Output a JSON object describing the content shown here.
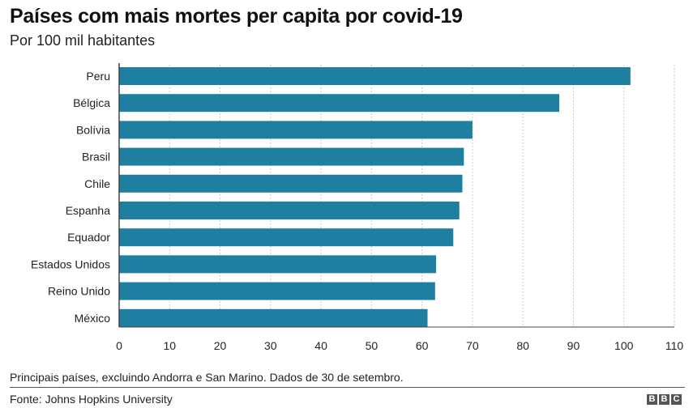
{
  "header": {
    "title": "Países com mais mortes per capita por covid-19",
    "subtitle": "Por 100 mil habitantes"
  },
  "footer": {
    "note": "Principais países, excluindo Andorra e San Marino. Dados de 30 de setembro.",
    "source": "Fonte: Johns Hopkins University",
    "logo_letters": [
      "B",
      "B",
      "C"
    ]
  },
  "colors": {
    "bar": "#1e7fa0",
    "grid": "#cccccc",
    "axis": "#444444"
  },
  "chart_data": {
    "type": "bar",
    "orientation": "horizontal",
    "title": "Países com mais mortes per capita por covid-19",
    "subtitle": "Por 100 mil habitantes",
    "categories": [
      "Peru",
      "Bélgica",
      "Bolívia",
      "Brasil",
      "Chile",
      "Espanha",
      "Equador",
      "Estados Unidos",
      "Reino Unido",
      "México"
    ],
    "values": [
      101.3,
      87.2,
      70.0,
      68.3,
      68.0,
      67.4,
      66.2,
      62.8,
      62.6,
      61.1
    ],
    "xlim": [
      0,
      110
    ],
    "xticks": [
      0,
      10,
      20,
      30,
      40,
      50,
      60,
      70,
      80,
      90,
      100,
      110
    ],
    "grid": true
  }
}
